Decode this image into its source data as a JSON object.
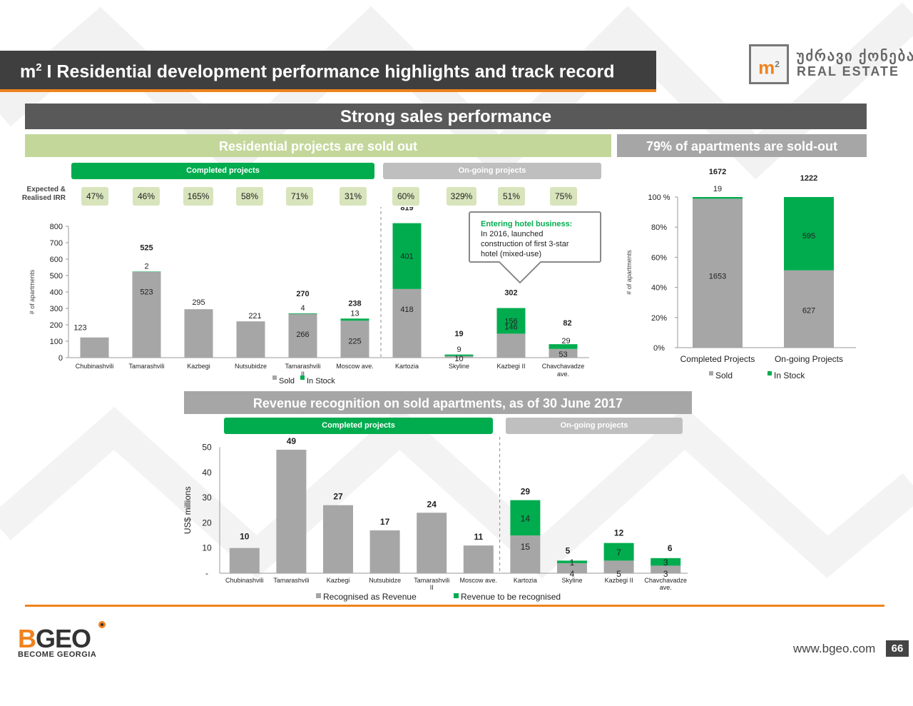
{
  "header": {
    "title_prefix": "m",
    "title_sup": "2",
    "title_main": " I Residential development performance highlights and track record",
    "logo_mark": "m",
    "logo_mark_sup": "2",
    "logo_georgian": " უძრავი ქონება",
    "logo_sub": "REAL ESTATE"
  },
  "banners": {
    "main": "Strong sales performance",
    "left": "Residential projects are sold out",
    "right": "79% of apartments are sold-out",
    "revenue": "Revenue recognition on sold apartments, as of 30 June 2017"
  },
  "pills": {
    "completed": "Completed projects",
    "ongoing": "On-going projects"
  },
  "irr": {
    "label_line1": "Expected &",
    "label_line2": "Realised IRR",
    "values": [
      "47%",
      "46%",
      "165%",
      "58%",
      "71%",
      "31%",
      "60%",
      "329%",
      "51%",
      "75%"
    ]
  },
  "callout": {
    "heading": "Entering hotel business:",
    "line1": "In 2016, launched",
    "line2": "construction of first 3-star",
    "line3": "hotel (mixed-use)"
  },
  "colors": {
    "sold": "#a6a6a6",
    "in_stock": "#00ac4e",
    "orange": "#f0821e",
    "irr_box": "#d8e4bc"
  },
  "footer": {
    "brand_b": "B",
    "brand_rest": "GEO",
    "tagline": "BECOME GEORGIA",
    "url": "www.bgeo.com",
    "page": "66"
  },
  "chart_data": [
    {
      "type": "bar",
      "stacked": true,
      "ylabel": "# of apartments",
      "ylim": [
        0,
        800
      ],
      "yticks": [
        0,
        100,
        200,
        300,
        400,
        500,
        600,
        700,
        800
      ],
      "categories": [
        "Chubinashvili",
        "Tamarashvili",
        "Kazbegi",
        "Nutsubidze",
        "Tamarashvili II",
        "Moscow ave.",
        "Kartozia",
        "Skyline",
        "Kazbegi II",
        "Chavchavadze ave."
      ],
      "series": [
        {
          "name": "Sold",
          "values": [
            123,
            523,
            295,
            221,
            266,
            225,
            418,
            10,
            146,
            53
          ]
        },
        {
          "name": "In Stock",
          "values": [
            0,
            2,
            0,
            0,
            4,
            13,
            401,
            9,
            156,
            29
          ]
        }
      ],
      "totals": [
        null,
        525,
        null,
        null,
        270,
        238,
        819,
        19,
        302,
        82
      ],
      "legend": "bottom",
      "grid": false
    },
    {
      "type": "bar",
      "stacked": true,
      "percent": true,
      "ylabel": "# of apartments",
      "yticks": [
        "0%",
        "20%",
        "40%",
        "60%",
        "80%",
        "100 %"
      ],
      "categories": [
        "Completed Projects",
        "On-going Projects"
      ],
      "series": [
        {
          "name": "Sold",
          "values": [
            1653,
            627
          ]
        },
        {
          "name": "In Stock",
          "values": [
            19,
            595
          ]
        }
      ],
      "totals": [
        1672,
        1222
      ],
      "legend": "bottom",
      "grid": false
    },
    {
      "type": "bar",
      "stacked": true,
      "ylabel": "US$ millions",
      "ylim": [
        0,
        50
      ],
      "yticks": [
        "-",
        "10",
        "20",
        "30",
        "40",
        "50"
      ],
      "categories": [
        "Chubinashvili",
        "Tamarashvili",
        "Kazbegi",
        "Nutsubidze",
        "Tamarashvili II",
        "Moscow ave.",
        "Kartozia",
        "Skyline",
        "Kazbegi II",
        "Chavchavadze ave."
      ],
      "series": [
        {
          "name": "Recognised as Revenue",
          "values": [
            10,
            49,
            27,
            17,
            24,
            11,
            15,
            4,
            5,
            3
          ]
        },
        {
          "name": "Revenue to be recognised",
          "values": [
            0,
            0,
            0,
            0,
            0,
            0,
            14,
            1,
            7,
            3
          ]
        }
      ],
      "totals": [
        10,
        49,
        27,
        17,
        24,
        11,
        29,
        5,
        12,
        6
      ],
      "legend": "bottom",
      "grid": false
    }
  ]
}
